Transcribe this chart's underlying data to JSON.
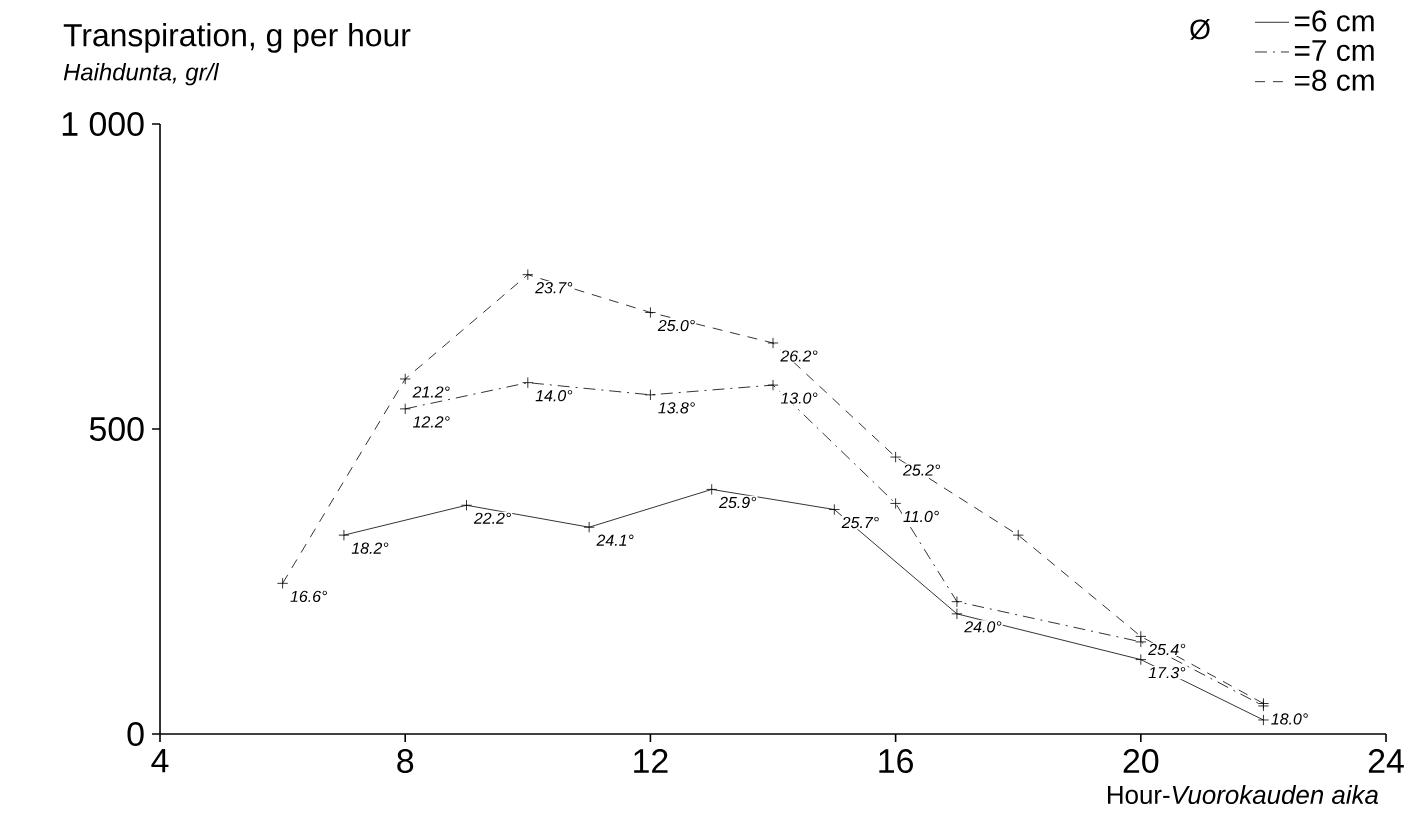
{
  "chart_data": {
    "type": "line",
    "title": "Transpiration, g per hour",
    "subtitle": "Haihdunta, gr/l",
    "xlabel": "Hour-*Vuorokauden aika*",
    "legend_title": "Ø",
    "xlim": [
      4,
      24
    ],
    "xticks": [
      4,
      8,
      12,
      16,
      20,
      24
    ],
    "ylim": [
      0,
      1000
    ],
    "yticks": [
      0,
      500,
      {
        "value": 1000,
        "label": "1 000"
      }
    ],
    "legend": "top right",
    "grid": false,
    "marker": "cross",
    "series": [
      {
        "name": "=6 cm",
        "color": "#000000",
        "line_style": "solid",
        "x": [
          7,
          9,
          11,
          13,
          15,
          17,
          20,
          22
        ],
        "values": [
          326,
          375,
          339,
          401,
          368,
          197,
          122,
          23
        ]
      },
      {
        "name": "=7 cm",
        "color": "#000000",
        "line_style": "dashdot",
        "x": [
          8,
          10,
          12,
          14,
          16,
          17,
          20,
          22
        ],
        "values": [
          533,
          576,
          556,
          572,
          378,
          217,
          151,
          46
        ]
      },
      {
        "name": "=8 cm",
        "color": "#000000",
        "line_style": "dashed",
        "x": [
          6,
          8,
          10,
          12,
          14,
          16,
          18,
          20,
          22
        ],
        "values": [
          247,
          582,
          753,
          691,
          641,
          454,
          326,
          160,
          50
        ]
      }
    ],
    "annotations": [
      {
        "text": "16.6°",
        "x": 6,
        "y": 247
      },
      {
        "text": "18.2°",
        "x": 7,
        "y": 326
      },
      {
        "text": "22.2°",
        "x": 9,
        "y": 375
      },
      {
        "text": "24.1°",
        "x": 11,
        "y": 339
      },
      {
        "text": "25.9°",
        "x": 13,
        "y": 401
      },
      {
        "text": "25.7°",
        "x": 15,
        "y": 368
      },
      {
        "text": "24.0°",
        "x": 17,
        "y": 197
      },
      {
        "text": "17.3°",
        "x": 20,
        "y": 122
      },
      {
        "text": "18.0°",
        "x": 22,
        "y": 46
      },
      {
        "text": "12.2°",
        "x": 8,
        "y": 533
      },
      {
        "text": "14.0°",
        "x": 10,
        "y": 576
      },
      {
        "text": "13.8°",
        "x": 12,
        "y": 556
      },
      {
        "text": "13.0°",
        "x": 14,
        "y": 572
      },
      {
        "text": "11.0°",
        "x": 16,
        "y": 378
      },
      {
        "text": "25.4°",
        "x": 20,
        "y": 160
      },
      {
        "text": "21.2°",
        "x": 8,
        "y": 582
      },
      {
        "text": "23.7°",
        "x": 10,
        "y": 753
      },
      {
        "text": "25.0°",
        "x": 12,
        "y": 691
      },
      {
        "text": "26.2°",
        "x": 14,
        "y": 641
      },
      {
        "text": "25.2°",
        "x": 16,
        "y": 454
      }
    ]
  }
}
